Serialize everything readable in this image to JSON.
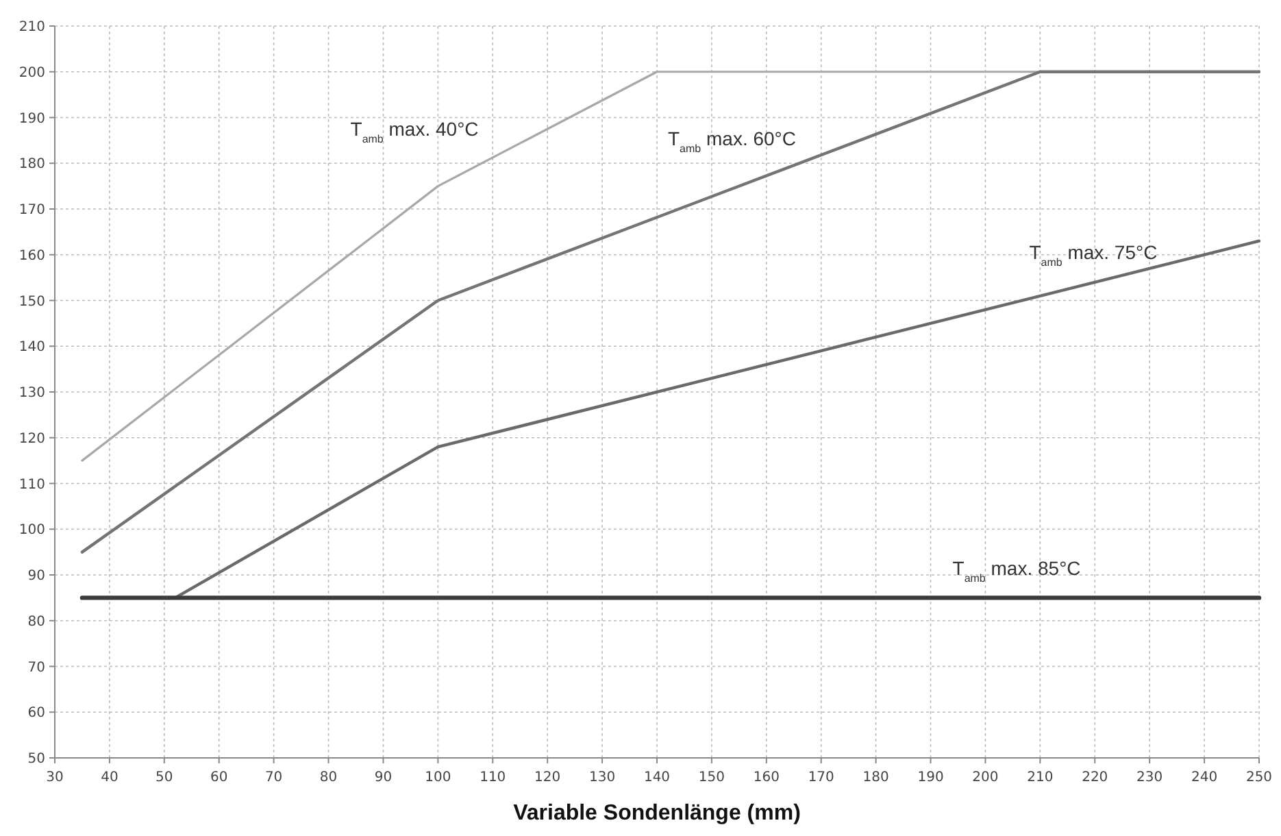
{
  "chart_data": {
    "type": "line",
    "xlabel": "Variable Sondenlänge (mm)",
    "xlim": [
      30,
      250
    ],
    "xticks": [
      30,
      40,
      50,
      60,
      70,
      80,
      90,
      100,
      110,
      120,
      130,
      140,
      150,
      160,
      170,
      180,
      190,
      200,
      210,
      220,
      230,
      240,
      250
    ],
    "ylim": [
      50,
      210
    ],
    "yticks": [
      50,
      60,
      70,
      80,
      90,
      100,
      110,
      120,
      130,
      140,
      150,
      160,
      170,
      180,
      190,
      200,
      210
    ],
    "grid": true,
    "marker": "none",
    "line_style": "solid",
    "series": [
      {
        "name": "T$_{amb}$ max. 40°C",
        "color": "#a8a8a8",
        "x": [
          35,
          100,
          140,
          250
        ],
        "values": [
          115,
          175,
          200,
          200
        ]
      },
      {
        "name": "T$_{amb}$ max. 60°C",
        "color": "#747474",
        "x": [
          35,
          100,
          210,
          250
        ],
        "values": [
          95,
          150,
          200,
          200
        ]
      },
      {
        "name": "T$_{amb}$ max. 75°C",
        "color": "#6a6a6a",
        "x": [
          52,
          100,
          250
        ],
        "values": [
          85,
          118,
          163
        ]
      },
      {
        "name": "T$_{amb}$ max. 85°C",
        "color": "#3c3c3c",
        "x": [
          35,
          250
        ],
        "values": [
          85,
          85
        ]
      }
    ]
  }
}
